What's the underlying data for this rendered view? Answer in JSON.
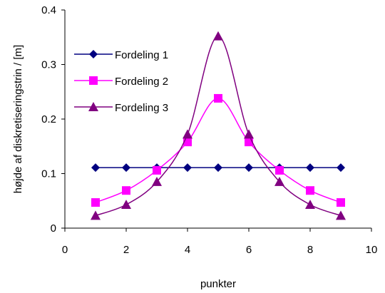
{
  "chart_data": {
    "type": "line",
    "xlabel": "punkter",
    "ylabel": "højde af diskretiseringstrin / [m]",
    "xlim": [
      0,
      10
    ],
    "ylim": [
      0,
      0.4
    ],
    "x_ticks": [
      "0",
      "2",
      "4",
      "6",
      "8",
      "10"
    ],
    "y_ticks": [
      "0",
      "0.1",
      "0.2",
      "0.3",
      "0.4"
    ],
    "grid": false,
    "legend_position": "top-left",
    "x": [
      1,
      2,
      3,
      4,
      5,
      6,
      7,
      8,
      9
    ],
    "series": [
      {
        "name": "Fordeling 1",
        "color": "#000080",
        "marker": "diamond",
        "values": [
          0.111,
          0.111,
          0.111,
          0.111,
          0.111,
          0.111,
          0.111,
          0.111,
          0.111
        ]
      },
      {
        "name": "Fordeling 2",
        "color": "#FF00FF",
        "marker": "square",
        "values": [
          0.047,
          0.069,
          0.106,
          0.158,
          0.238,
          0.158,
          0.106,
          0.069,
          0.047
        ]
      },
      {
        "name": "Fordeling 3",
        "color": "#800080",
        "marker": "triangle",
        "values": [
          0.023,
          0.043,
          0.085,
          0.172,
          0.352,
          0.172,
          0.085,
          0.043,
          0.023
        ]
      }
    ]
  }
}
